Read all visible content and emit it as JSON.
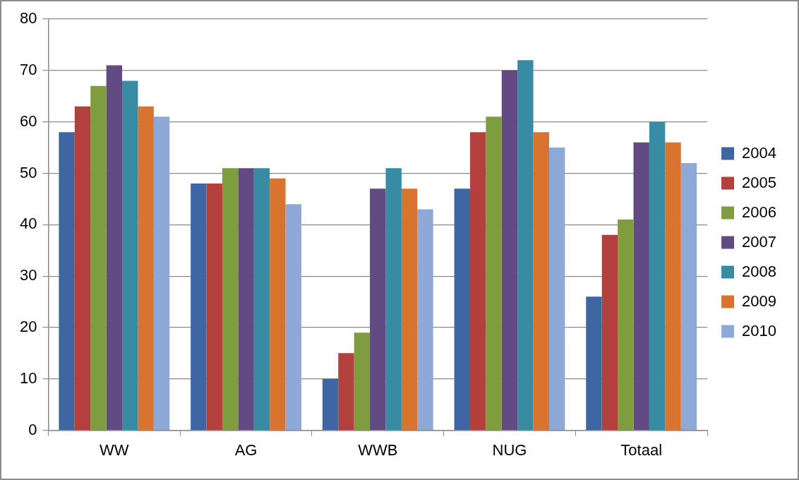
{
  "chart_data": {
    "type": "bar",
    "categories": [
      "WW",
      "AG",
      "WWB",
      "NUG",
      "Totaal"
    ],
    "series": [
      {
        "name": "2004",
        "color": "#3d66a3",
        "values": [
          58,
          48,
          10,
          47,
          26
        ]
      },
      {
        "name": "2005",
        "color": "#b3403d",
        "values": [
          63,
          48,
          15,
          58,
          38
        ]
      },
      {
        "name": "2006",
        "color": "#7f9c3f",
        "values": [
          67,
          51,
          19,
          61,
          41
        ]
      },
      {
        "name": "2007",
        "color": "#624a82",
        "values": [
          71,
          51,
          47,
          70,
          56
        ]
      },
      {
        "name": "2008",
        "color": "#378ca3",
        "values": [
          68,
          51,
          51,
          72,
          60
        ]
      },
      {
        "name": "2009",
        "color": "#d97430",
        "values": [
          63,
          49,
          47,
          58,
          56
        ]
      },
      {
        "name": "2010",
        "color": "#8ea8d8",
        "values": [
          61,
          44,
          43,
          55,
          52
        ]
      }
    ],
    "ylim": [
      0,
      80
    ],
    "yticks": [
      0,
      10,
      20,
      30,
      40,
      50,
      60,
      70,
      80
    ],
    "grid": true,
    "legend": "right"
  }
}
